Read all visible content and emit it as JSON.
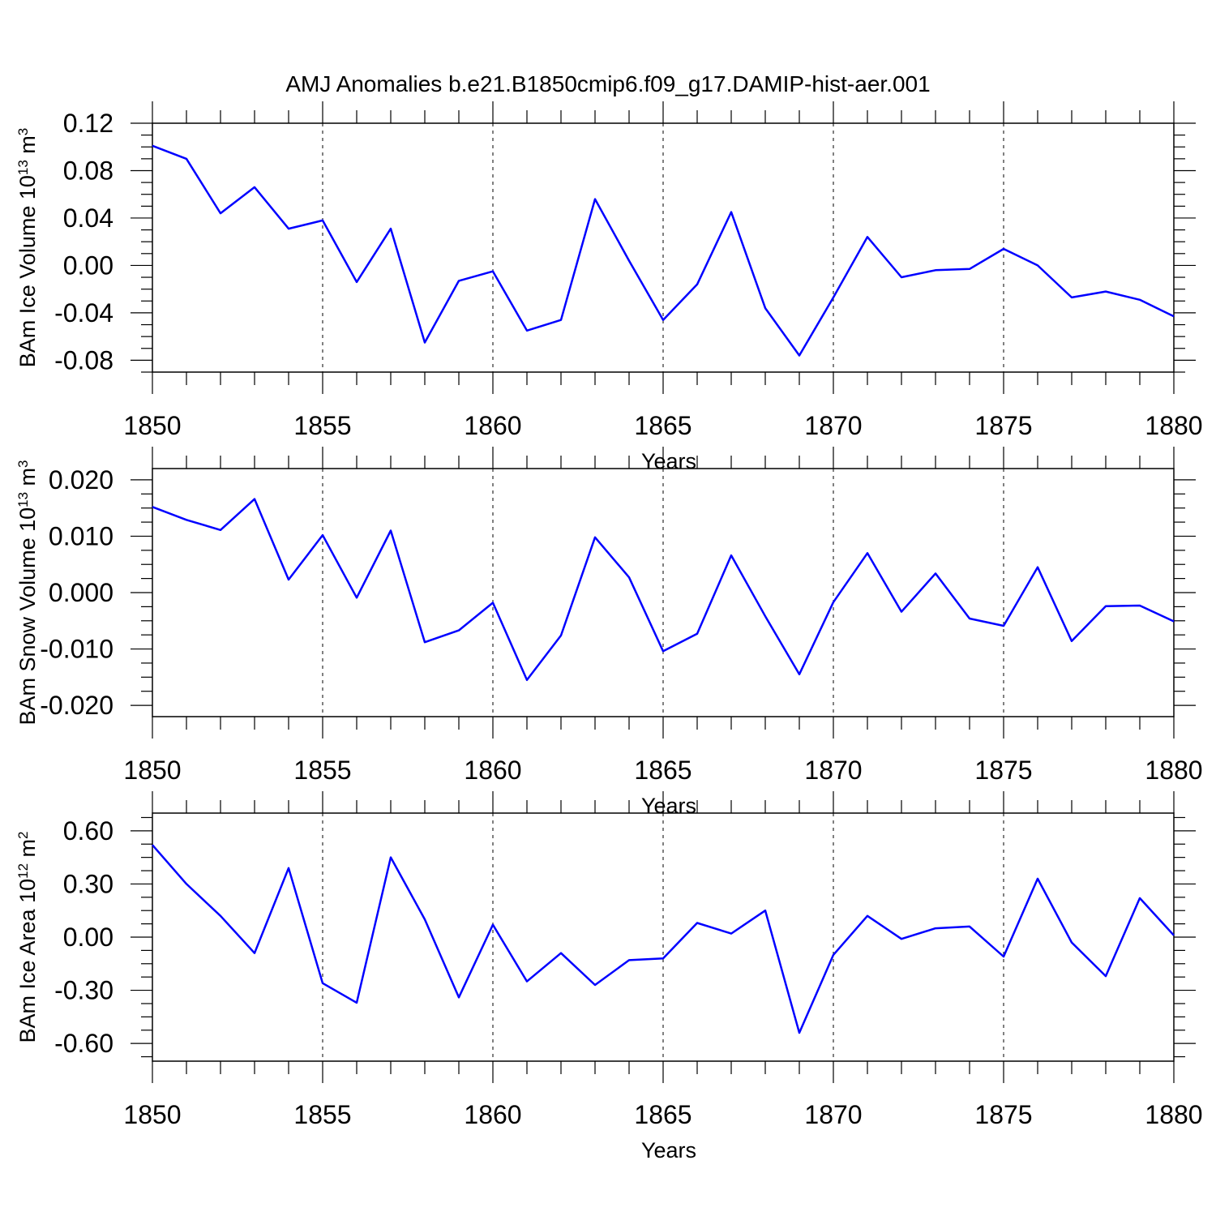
{
  "title": "AMJ Anomalies b.e21.B1850cmip6.f09_g17.DAMIP-hist-aer.001",
  "colors": {
    "line": "#0000ff",
    "axis": "#000000",
    "grid": "#000000"
  },
  "chart_data": [
    {
      "type": "line",
      "title": "",
      "xlabel": "Years",
      "ylabel": {
        "base": "BAm Ice Volume 10",
        "exp": "13",
        "unit": " m",
        "unit_exp": "3"
      },
      "xlim": [
        1850,
        1880
      ],
      "ylim": [
        -0.09,
        0.12
      ],
      "x_ticks": [
        1850,
        1855,
        1860,
        1865,
        1870,
        1875,
        1880
      ],
      "x_ticklabels": [
        "1850",
        "1855",
        "1860",
        "1865",
        "1870",
        "1875",
        "1880"
      ],
      "y_ticks": [
        -0.08,
        -0.04,
        0.0,
        0.04,
        0.08,
        0.12
      ],
      "y_ticklabels": [
        "-0.08",
        "-0.04",
        "0.00",
        "0.04",
        "0.08",
        "0.12"
      ],
      "grid": "vertical dashed at major x ticks",
      "x": [
        1850,
        1851,
        1852,
        1853,
        1854,
        1855,
        1856,
        1857,
        1858,
        1859,
        1860,
        1861,
        1862,
        1863,
        1864,
        1865,
        1866,
        1867,
        1868,
        1869,
        1870,
        1871,
        1872,
        1873,
        1874,
        1875,
        1876,
        1877,
        1878,
        1879,
        1880
      ],
      "series": [
        {
          "values": [
            0.101,
            0.09,
            0.044,
            0.066,
            0.031,
            0.038,
            -0.014,
            0.031,
            -0.065,
            -0.013,
            -0.005,
            -0.055,
            -0.046,
            0.056,
            0.004,
            -0.046,
            -0.016,
            0.045,
            -0.036,
            -0.076,
            -0.027,
            0.024,
            -0.01,
            -0.004,
            -0.003,
            0.014,
            0.0,
            -0.027,
            -0.022,
            -0.029,
            -0.043
          ]
        }
      ]
    },
    {
      "type": "line",
      "title": "",
      "xlabel": "Years",
      "ylabel": {
        "base": "BAm Snow Volume 10",
        "exp": "13",
        "unit": " m",
        "unit_exp": "3"
      },
      "xlim": [
        1850,
        1880
      ],
      "ylim": [
        -0.022,
        0.022
      ],
      "x_ticks": [
        1850,
        1855,
        1860,
        1865,
        1870,
        1875,
        1880
      ],
      "x_ticklabels": [
        "1850",
        "1855",
        "1860",
        "1865",
        "1870",
        "1875",
        "1880"
      ],
      "y_ticks": [
        -0.02,
        -0.01,
        0.0,
        0.01,
        0.02
      ],
      "y_ticklabels": [
        "-0.020",
        "-0.010",
        "0.000",
        "0.010",
        "0.020"
      ],
      "grid": "vertical dashed at major x ticks",
      "x": [
        1850,
        1851,
        1852,
        1853,
        1854,
        1855,
        1856,
        1857,
        1858,
        1859,
        1860,
        1861,
        1862,
        1863,
        1864,
        1865,
        1866,
        1867,
        1868,
        1869,
        1870,
        1871,
        1872,
        1873,
        1874,
        1875,
        1876,
        1877,
        1878,
        1879,
        1880
      ],
      "series": [
        {
          "values": [
            0.0152,
            0.0129,
            0.0111,
            0.0166,
            0.0023,
            0.0102,
            -0.0009,
            0.011,
            -0.0088,
            -0.0067,
            -0.0018,
            -0.0155,
            -0.0076,
            0.0098,
            0.0027,
            -0.0104,
            -0.0073,
            0.0066,
            -0.0042,
            -0.0145,
            -0.0017,
            0.007,
            -0.0034,
            0.0034,
            -0.0046,
            -0.0059,
            0.0045,
            -0.0086,
            -0.0024,
            -0.0023,
            -0.0051
          ]
        }
      ]
    },
    {
      "type": "line",
      "title": "",
      "xlabel": "Years",
      "ylabel": {
        "base": "BAm Ice Area 10",
        "exp": "12",
        "unit": " m",
        "unit_exp": "2"
      },
      "xlim": [
        1850,
        1880
      ],
      "ylim": [
        -0.7,
        0.7
      ],
      "x_ticks": [
        1850,
        1855,
        1860,
        1865,
        1870,
        1875,
        1880
      ],
      "x_ticklabels": [
        "1850",
        "1855",
        "1860",
        "1865",
        "1870",
        "1875",
        "1880"
      ],
      "y_ticks": [
        -0.6,
        -0.3,
        0.0,
        0.3,
        0.6
      ],
      "y_ticklabels": [
        "-0.60",
        "-0.30",
        "0.00",
        "0.30",
        "0.60"
      ],
      "grid": "vertical dashed at major x ticks",
      "x": [
        1850,
        1851,
        1852,
        1853,
        1854,
        1855,
        1856,
        1857,
        1858,
        1859,
        1860,
        1861,
        1862,
        1863,
        1864,
        1865,
        1866,
        1867,
        1868,
        1869,
        1870,
        1871,
        1872,
        1873,
        1874,
        1875,
        1876,
        1877,
        1878,
        1879,
        1880
      ],
      "series": [
        {
          "values": [
            0.52,
            0.3,
            0.12,
            -0.09,
            0.39,
            -0.26,
            -0.37,
            0.45,
            0.1,
            -0.34,
            0.07,
            -0.25,
            -0.09,
            -0.27,
            -0.13,
            -0.12,
            0.08,
            0.02,
            0.15,
            -0.54,
            -0.1,
            0.12,
            -0.01,
            0.05,
            0.06,
            -0.11,
            0.33,
            -0.03,
            -0.22,
            0.22,
            0.01
          ]
        }
      ]
    }
  ]
}
